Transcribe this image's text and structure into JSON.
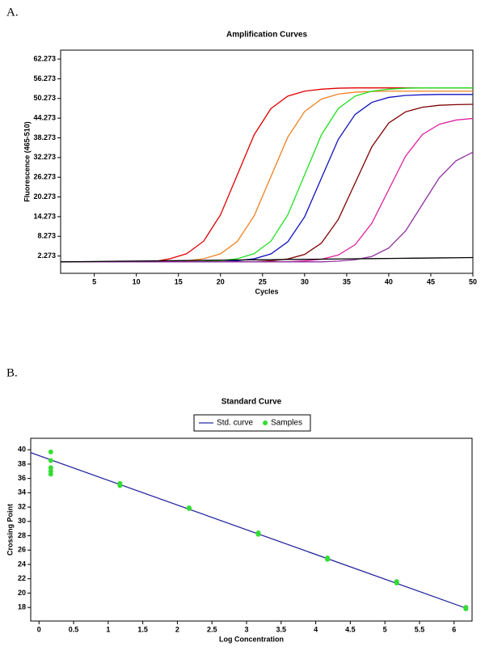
{
  "chart_data": [
    {
      "type": "line",
      "panel_label": "A.",
      "title": "Amplification Curves",
      "x_label": "Cycles",
      "y_label": "Fluorescence (465-510)",
      "x": [
        1,
        4,
        8,
        12,
        14,
        16,
        18,
        20,
        22,
        24,
        26,
        28,
        30,
        32,
        34,
        36,
        38,
        40,
        42,
        44,
        46,
        48,
        50
      ],
      "series": [
        {
          "color": "#e00000",
          "values": [
            0.5,
            0.5,
            0.5,
            0.5,
            1.45,
            3.0,
            6.8,
            14.8,
            27.0,
            39.2,
            47.2,
            51.0,
            52.5,
            53.1,
            53.4,
            53.5,
            53.5,
            53.5,
            53.5,
            53.5,
            53.5,
            53.5,
            53.5
          ]
        },
        {
          "color": "#f08020",
          "values": [
            0.5,
            0.5,
            0.5,
            0.5,
            0.63,
            0.85,
            1.44,
            2.94,
            6.7,
            14.5,
            26.5,
            38.5,
            46.3,
            50.1,
            51.6,
            52.2,
            52.4,
            52.5,
            52.5,
            52.5,
            52.5,
            52.5,
            52.5
          ]
        },
        {
          "color": "#20e020",
          "values": [
            0.5,
            0.5,
            0.5,
            0.5,
            0.5,
            0.5,
            0.63,
            0.85,
            1.45,
            3.0,
            6.8,
            14.8,
            27.0,
            39.2,
            47.2,
            51.0,
            52.5,
            53.1,
            53.4,
            53.5,
            53.5,
            53.5,
            53.5
          ]
        },
        {
          "color": "#1010c0",
          "values": [
            0.5,
            0.5,
            0.5,
            0.5,
            0.5,
            0.5,
            0.5,
            0.5,
            0.84,
            1.42,
            2.9,
            6.6,
            14.2,
            26.0,
            37.8,
            45.4,
            49.1,
            50.6,
            51.2,
            51.4,
            51.5,
            51.5,
            51.5
          ]
        },
        {
          "color": "#800000",
          "values": [
            0.5,
            0.5,
            0.5,
            0.5,
            0.5,
            0.5,
            0.5,
            0.5,
            0.5,
            0.5,
            0.82,
            1.36,
            2.76,
            6.2,
            13.4,
            24.5,
            35.6,
            42.8,
            46.2,
            47.6,
            48.2,
            48.4,
            48.5
          ]
        },
        {
          "color": "#e020a0",
          "values": [
            0.5,
            0.5,
            0.5,
            0.5,
            0.5,
            0.5,
            0.5,
            0.5,
            0.5,
            0.5,
            0.5,
            0.5,
            0.79,
            1.29,
            2.57,
            5.7,
            12.3,
            22.5,
            32.7,
            39.3,
            42.4,
            43.7,
            44.2
          ]
        },
        {
          "color": "#9030a0",
          "values": [
            0.5,
            0.5,
            0.5,
            0.5,
            0.5,
            0.5,
            0.5,
            0.5,
            0.5,
            0.5,
            0.5,
            0.5,
            0.5,
            0.5,
            0.73,
            1.13,
            2.15,
            4.7,
            9.9,
            18.0,
            26.1,
            31.3,
            33.9
          ]
        },
        {
          "color": "#000000",
          "values": [
            0.5,
            0.58,
            0.69,
            0.79,
            0.84,
            0.9,
            0.95,
            1.0,
            1.06,
            1.11,
            1.16,
            1.22,
            1.27,
            1.32,
            1.37,
            1.43,
            1.48,
            1.53,
            1.59,
            1.64,
            1.69,
            1.75,
            1.8
          ]
        }
      ],
      "xlim": [
        1,
        50
      ],
      "xticks": [
        5,
        10,
        15,
        20,
        25,
        30,
        35,
        40,
        45,
        50
      ],
      "ylim": [
        -3,
        65
      ],
      "yticks": [
        2.273,
        8.273,
        14.273,
        20.273,
        26.273,
        32.273,
        38.273,
        44.273,
        50.273,
        56.273,
        62.273
      ]
    },
    {
      "type": "scatter",
      "panel_label": "B.",
      "title": "Standard Curve",
      "x_label": "Log Concentration",
      "y_label": "Crossing Point",
      "legend": "top",
      "series": [
        {
          "name": "Std. curve",
          "mode": "line",
          "color": "#2a2aa0",
          "x": [
            -0.12,
            6.2
          ],
          "values": [
            39.6,
            17.8
          ]
        },
        {
          "name": "Samples",
          "mode": "markers",
          "color": "#33dd33",
          "x": [
            0.17,
            0.17,
            0.17,
            0.17,
            0.17,
            1.17,
            1.17,
            2.17,
            2.17,
            3.17,
            3.17,
            4.17,
            4.17,
            5.17,
            5.17,
            6.17,
            6.17
          ],
          "values": [
            39.7,
            38.5,
            37.5,
            37.0,
            36.6,
            35.3,
            35.0,
            31.9,
            31.8,
            28.4,
            28.2,
            24.9,
            24.7,
            21.6,
            21.4,
            18.0,
            17.8
          ]
        }
      ],
      "xlim": [
        -0.12,
        6.26
      ],
      "xticks": [
        0,
        0.5,
        1,
        1.5,
        2,
        2.5,
        3,
        3.5,
        4,
        4.5,
        5,
        5.5,
        6
      ],
      "ylim": [
        16.1,
        41.6
      ],
      "yticks": [
        18,
        20,
        22,
        24,
        26,
        28,
        30,
        32,
        34,
        36,
        38,
        40
      ]
    }
  ]
}
